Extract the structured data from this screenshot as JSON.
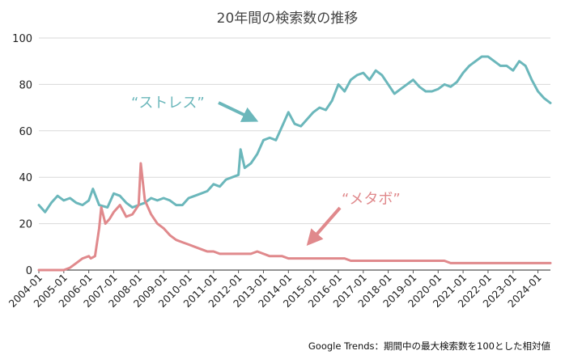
{
  "chart_data": {
    "type": "line",
    "title": "20年間の検索数の推移",
    "xlabel": "",
    "ylabel": "",
    "ylim": [
      0,
      100
    ],
    "yticks": [
      "0",
      "20",
      "40",
      "60",
      "80",
      "100"
    ],
    "xticks": [
      "2004-01",
      "2005-01",
      "2006-01",
      "2007-01",
      "2008-01",
      "2009-01",
      "2010-01",
      "2011-01",
      "2012-01",
      "2013-01",
      "2014-01",
      "2015-01",
      "2016-01",
      "2017-01",
      "2018-01",
      "2019-01",
      "2020-01",
      "2021-01",
      "2022-01",
      "2023-01",
      "2024-01"
    ],
    "x_range": [
      "2004-01",
      "2024-07"
    ],
    "grid": "horizontal",
    "legend": "none",
    "annotations": [
      {
        "text": "“ストレス”",
        "series": "ストレス",
        "color": "#6bb7bb"
      },
      {
        "text": "“メタボ”",
        "series": "メタボ",
        "color": "#e0898c"
      }
    ],
    "source_note": "Google Trends：期間中の最大検索数を100とした相対値",
    "series": [
      {
        "name": "ストレス",
        "color": "#6bb7bb",
        "points": [
          [
            "2004-01",
            28
          ],
          [
            "2004-04",
            25
          ],
          [
            "2004-07",
            29
          ],
          [
            "2004-10",
            32
          ],
          [
            "2005-01",
            30
          ],
          [
            "2005-04",
            31
          ],
          [
            "2005-07",
            29
          ],
          [
            "2005-10",
            28
          ],
          [
            "2006-01",
            30
          ],
          [
            "2006-03",
            35
          ],
          [
            "2006-06",
            28
          ],
          [
            "2006-10",
            27
          ],
          [
            "2007-01",
            33
          ],
          [
            "2007-04",
            32
          ],
          [
            "2007-07",
            29
          ],
          [
            "2007-10",
            27
          ],
          [
            "2008-01",
            28
          ],
          [
            "2008-04",
            29
          ],
          [
            "2008-07",
            31
          ],
          [
            "2008-10",
            30
          ],
          [
            "2009-01",
            31
          ],
          [
            "2009-04",
            30
          ],
          [
            "2009-07",
            28
          ],
          [
            "2009-10",
            28
          ],
          [
            "2010-01",
            31
          ],
          [
            "2010-04",
            32
          ],
          [
            "2010-07",
            33
          ],
          [
            "2010-10",
            34
          ],
          [
            "2011-01",
            37
          ],
          [
            "2011-04",
            36
          ],
          [
            "2011-07",
            39
          ],
          [
            "2011-10",
            40
          ],
          [
            "2012-01",
            41
          ],
          [
            "2012-02",
            52
          ],
          [
            "2012-04",
            44
          ],
          [
            "2012-07",
            46
          ],
          [
            "2012-10",
            50
          ],
          [
            "2013-01",
            56
          ],
          [
            "2013-04",
            57
          ],
          [
            "2013-07",
            56
          ],
          [
            "2013-10",
            62
          ],
          [
            "2014-01",
            68
          ],
          [
            "2014-04",
            63
          ],
          [
            "2014-07",
            62
          ],
          [
            "2015-01",
            68
          ],
          [
            "2015-04",
            70
          ],
          [
            "2015-07",
            69
          ],
          [
            "2015-10",
            73
          ],
          [
            "2016-01",
            80
          ],
          [
            "2016-04",
            77
          ],
          [
            "2016-07",
            82
          ],
          [
            "2016-10",
            84
          ],
          [
            "2017-01",
            85
          ],
          [
            "2017-04",
            82
          ],
          [
            "2017-07",
            86
          ],
          [
            "2017-10",
            84
          ],
          [
            "2018-01",
            80
          ],
          [
            "2018-04",
            76
          ],
          [
            "2018-07",
            78
          ],
          [
            "2018-10",
            80
          ],
          [
            "2019-01",
            82
          ],
          [
            "2019-04",
            79
          ],
          [
            "2019-07",
            77
          ],
          [
            "2019-10",
            77
          ],
          [
            "2020-01",
            78
          ],
          [
            "2020-04",
            80
          ],
          [
            "2020-07",
            79
          ],
          [
            "2020-10",
            81
          ],
          [
            "2021-01",
            85
          ],
          [
            "2021-04",
            88
          ],
          [
            "2021-07",
            90
          ],
          [
            "2021-10",
            92
          ],
          [
            "2022-01",
            92
          ],
          [
            "2022-04",
            90
          ],
          [
            "2022-07",
            88
          ],
          [
            "2022-10",
            88
          ],
          [
            "2023-01",
            86
          ],
          [
            "2023-04",
            90
          ],
          [
            "2023-07",
            88
          ],
          [
            "2023-10",
            82
          ],
          [
            "2024-01",
            77
          ],
          [
            "2024-04",
            74
          ],
          [
            "2024-07",
            72
          ]
        ]
      },
      {
        "name": "メタボ",
        "color": "#e0898c",
        "points": [
          [
            "2004-01",
            0
          ],
          [
            "2004-04",
            0
          ],
          [
            "2004-07",
            0
          ],
          [
            "2004-10",
            0
          ],
          [
            "2005-01",
            0
          ],
          [
            "2005-04",
            1
          ],
          [
            "2005-07",
            3
          ],
          [
            "2005-10",
            5
          ],
          [
            "2006-01",
            6
          ],
          [
            "2006-02",
            5
          ],
          [
            "2006-04",
            6
          ],
          [
            "2006-06",
            18
          ],
          [
            "2006-07",
            27
          ],
          [
            "2006-09",
            20
          ],
          [
            "2006-11",
            22
          ],
          [
            "2007-01",
            25
          ],
          [
            "2007-04",
            28
          ],
          [
            "2007-07",
            23
          ],
          [
            "2007-10",
            24
          ],
          [
            "2008-01",
            28
          ],
          [
            "2008-02",
            46
          ],
          [
            "2008-04",
            30
          ],
          [
            "2008-07",
            24
          ],
          [
            "2008-10",
            20
          ],
          [
            "2009-01",
            18
          ],
          [
            "2009-04",
            15
          ],
          [
            "2009-07",
            13
          ],
          [
            "2009-10",
            12
          ],
          [
            "2010-01",
            11
          ],
          [
            "2010-04",
            10
          ],
          [
            "2010-07",
            9
          ],
          [
            "2010-10",
            8
          ],
          [
            "2011-01",
            8
          ],
          [
            "2011-04",
            7
          ],
          [
            "2011-07",
            7
          ],
          [
            "2011-10",
            7
          ],
          [
            "2012-01",
            7
          ],
          [
            "2012-04",
            7
          ],
          [
            "2012-07",
            7
          ],
          [
            "2012-10",
            8
          ],
          [
            "2013-01",
            7
          ],
          [
            "2013-04",
            6
          ],
          [
            "2013-07",
            6
          ],
          [
            "2013-10",
            6
          ],
          [
            "2014-01",
            5
          ],
          [
            "2014-04",
            5
          ],
          [
            "2014-07",
            5
          ],
          [
            "2014-10",
            5
          ],
          [
            "2015-01",
            5
          ],
          [
            "2015-04",
            5
          ],
          [
            "2015-07",
            5
          ],
          [
            "2015-10",
            5
          ],
          [
            "2016-01",
            5
          ],
          [
            "2016-04",
            5
          ],
          [
            "2016-07",
            4
          ],
          [
            "2016-10",
            4
          ],
          [
            "2017-01",
            4
          ],
          [
            "2017-04",
            4
          ],
          [
            "2017-07",
            4
          ],
          [
            "2017-10",
            4
          ],
          [
            "2018-01",
            4
          ],
          [
            "2018-04",
            4
          ],
          [
            "2018-07",
            4
          ],
          [
            "2018-10",
            4
          ],
          [
            "2019-01",
            4
          ],
          [
            "2019-04",
            4
          ],
          [
            "2019-07",
            4
          ],
          [
            "2019-10",
            4
          ],
          [
            "2020-01",
            4
          ],
          [
            "2020-04",
            4
          ],
          [
            "2020-07",
            3
          ],
          [
            "2020-10",
            3
          ],
          [
            "2021-01",
            3
          ],
          [
            "2021-04",
            3
          ],
          [
            "2021-07",
            3
          ],
          [
            "2021-10",
            3
          ],
          [
            "2022-01",
            3
          ],
          [
            "2022-04",
            3
          ],
          [
            "2022-07",
            3
          ],
          [
            "2022-10",
            3
          ],
          [
            "2023-01",
            3
          ],
          [
            "2023-04",
            3
          ],
          [
            "2023-07",
            3
          ],
          [
            "2023-10",
            3
          ],
          [
            "2024-01",
            3
          ],
          [
            "2024-04",
            3
          ],
          [
            "2024-07",
            3
          ]
        ]
      }
    ]
  }
}
